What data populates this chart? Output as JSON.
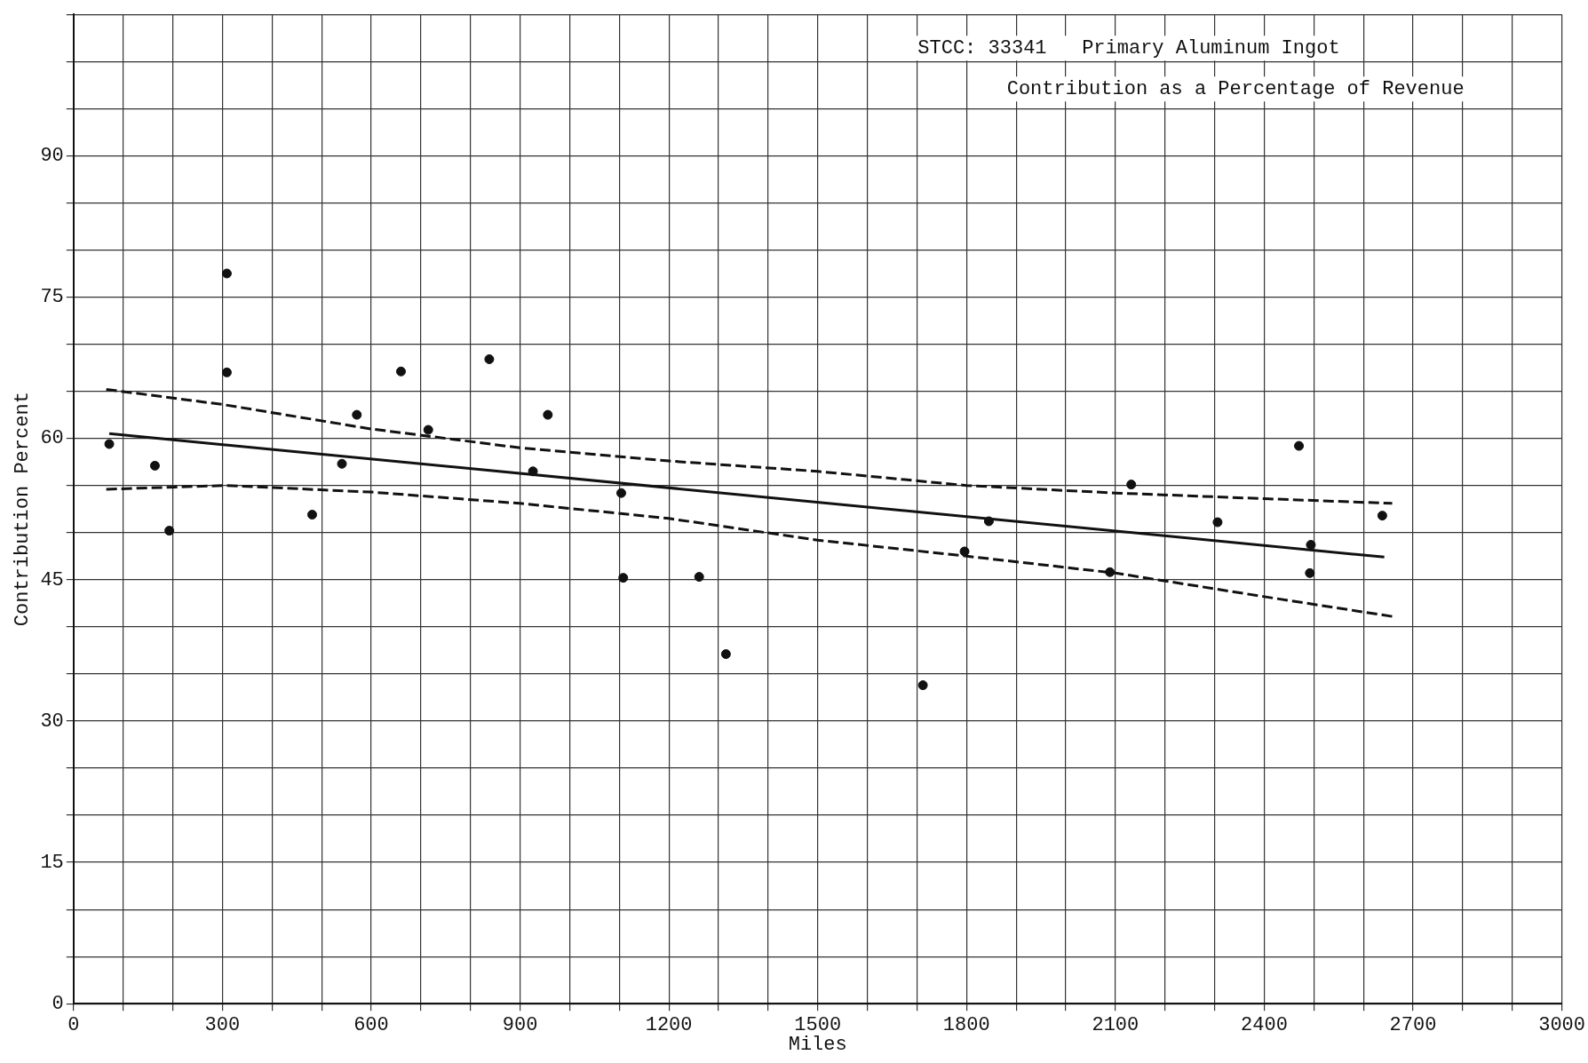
{
  "chart_data": {
    "type": "scatter",
    "title": "STCC: 33341   Primary Aluminum Ingot",
    "subtitle": "Contribution as a Percentage of Revenue",
    "xlabel": "Miles",
    "ylabel": "Contribution Percent",
    "xlim": [
      0,
      3000
    ],
    "ylim": [
      0,
      105
    ],
    "xticks": [
      0,
      {
        "value": 100,
        "label": null
      },
      {
        "value": 200,
        "label": null
      },
      300,
      {
        "value": 400,
        "label": null
      },
      {
        "value": 500,
        "label": null
      },
      600,
      {
        "value": 700,
        "label": null
      },
      {
        "value": 800,
        "label": null
      },
      900,
      {
        "value": 1000,
        "label": null
      },
      {
        "value": 1100,
        "label": null
      },
      1200,
      {
        "value": 1300,
        "label": null
      },
      {
        "value": 1400,
        "label": null
      },
      1500,
      {
        "value": 1600,
        "label": null
      },
      {
        "value": 1700,
        "label": null
      },
      1800,
      {
        "value": 1900,
        "label": null
      },
      {
        "value": 2000,
        "label": null
      },
      2100,
      {
        "value": 2200,
        "label": null
      },
      {
        "value": 2300,
        "label": null
      },
      2400,
      {
        "value": 2500,
        "label": null
      },
      {
        "value": 2600,
        "label": null
      },
      2700,
      {
        "value": 2800,
        "label": null
      },
      {
        "value": 2900,
        "label": null
      },
      3000
    ],
    "yticks": [
      0,
      {
        "value": 5,
        "label": null
      },
      {
        "value": 10,
        "label": null
      },
      15,
      {
        "value": 20,
        "label": null
      },
      {
        "value": 25,
        "label": null
      },
      30,
      {
        "value": 35,
        "label": null
      },
      {
        "value": 40,
        "label": null
      },
      45,
      {
        "value": 50,
        "label": null
      },
      {
        "value": 55,
        "label": null
      },
      60,
      {
        "value": 65,
        "label": null
      },
      {
        "value": 70,
        "label": null
      },
      75,
      {
        "value": 80,
        "label": null
      },
      {
        "value": 85,
        "label": null
      },
      90,
      {
        "value": 95,
        "label": null
      },
      {
        "value": 100,
        "label": null
      },
      {
        "value": 105,
        "label": null
      }
    ],
    "grid": true,
    "legend": false,
    "series": [
      {
        "type": "scatter",
        "color": "#111111",
        "marker": "circle",
        "x": [
          72,
          164,
          193,
          309,
          309,
          481,
          541,
          571,
          660,
          715,
          838,
          926,
          956,
          1104,
          1108,
          1261,
          1315,
          1712,
          1796,
          1845,
          2089,
          2132,
          2306,
          2470,
          2494,
          2492,
          2638
        ],
        "values": [
          59.4,
          57.1,
          50.2,
          77.5,
          67.0,
          51.9,
          57.3,
          62.5,
          67.1,
          60.9,
          68.4,
          56.5,
          62.5,
          54.2,
          45.2,
          45.3,
          37.1,
          33.8,
          48.0,
          51.2,
          45.8,
          55.1,
          51.1,
          59.2,
          48.7,
          45.7,
          51.8
        ]
      },
      {
        "type": "line",
        "color": "#111111",
        "line_style": "solid",
        "marker": "none",
        "x": [
          72,
          2642
        ],
        "values": [
          60.5,
          47.4
        ]
      },
      {
        "type": "line",
        "color": "#111111",
        "line_style": "dashed",
        "marker": "none",
        "x": [
          66,
          300,
          600,
          900,
          1200,
          1500,
          1800,
          2100,
          2400,
          2658
        ],
        "values": [
          65.2,
          63.6,
          61.0,
          59.0,
          57.6,
          56.5,
          55.0,
          54.2,
          53.6,
          53.1
        ]
      },
      {
        "type": "line",
        "color": "#111111",
        "line_style": "dashed",
        "marker": "none",
        "x": [
          66,
          307,
          600,
          900,
          1200,
          1500,
          1800,
          2100,
          2400,
          2658
        ],
        "values": [
          54.6,
          55.0,
          54.3,
          53.1,
          51.5,
          49.2,
          47.5,
          45.7,
          43.2,
          41.1
        ]
      }
    ]
  }
}
